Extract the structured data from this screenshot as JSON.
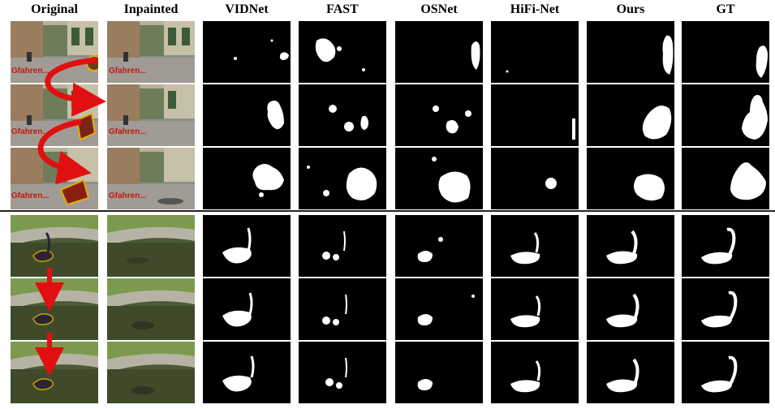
{
  "columns": [
    "Original",
    "Inpainted",
    "VIDNet",
    "FAST",
    "OSNet",
    "HiFi-Net",
    "Ours",
    "GT"
  ],
  "scene1_caption_text": "Gfahren...",
  "colors": {
    "mask_fg": "#ffffff",
    "mask_bg": "#000000",
    "arrow": "#e01010",
    "divider": "#222222"
  }
}
